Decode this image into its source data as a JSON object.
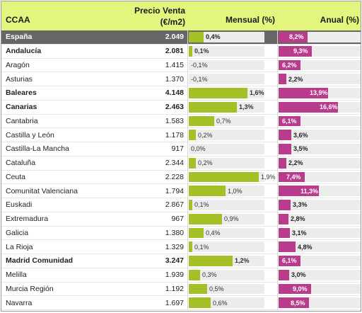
{
  "header": {
    "ccaa": "CCAA",
    "precio_line1": "Precio Venta",
    "precio_line2": "(€/m2)",
    "mensual": "Mensual (%)",
    "anual": "Anual (%)"
  },
  "colors": {
    "header_bg": "#e4f57e",
    "highlight_bg": "#676767",
    "mensual_bar": "#a3c127",
    "anual_bar": "#b83b8c"
  },
  "rows": [
    {
      "name": "España",
      "price": "2.049",
      "mensual": "0,4%",
      "mensual_value": 0.4,
      "anual": "8,2%",
      "anual_value": 8.2,
      "style": "highlight"
    },
    {
      "name": "Andalucía",
      "price": "2.081",
      "mensual": "0,1%",
      "mensual_value": 0.1,
      "anual": "9,3%",
      "anual_value": 9.3,
      "style": "bold"
    },
    {
      "name": "Aragón",
      "price": "1.415",
      "mensual": "-0,1%",
      "mensual_value": -0.1,
      "anual": "6,2%",
      "anual_value": 6.2,
      "style": "normal"
    },
    {
      "name": "Asturias",
      "price": "1.370",
      "mensual": "-0,1%",
      "mensual_value": -0.1,
      "anual": "2,2%",
      "anual_value": 2.2,
      "style": "normal"
    },
    {
      "name": "Baleares",
      "price": "4.148",
      "mensual": "1,6%",
      "mensual_value": 1.6,
      "anual": "13,9%",
      "anual_value": 13.9,
      "style": "bold"
    },
    {
      "name": "Canarias",
      "price": "2.463",
      "mensual": "1,3%",
      "mensual_value": 1.3,
      "anual": "16,6%",
      "anual_value": 16.6,
      "style": "bold"
    },
    {
      "name": "Cantabria",
      "price": "1.583",
      "mensual": "0,7%",
      "mensual_value": 0.7,
      "anual": "6,1%",
      "anual_value": 6.1,
      "style": "normal"
    },
    {
      "name": "Castilla y León",
      "price": "1.178",
      "mensual": "0,2%",
      "mensual_value": 0.2,
      "anual": "3,6%",
      "anual_value": 3.6,
      "style": "normal"
    },
    {
      "name": "Castilla-La Mancha",
      "price": "917",
      "mensual": "0,0%",
      "mensual_value": 0.0,
      "anual": "3,5%",
      "anual_value": 3.5,
      "style": "normal"
    },
    {
      "name": "Cataluña",
      "price": "2.344",
      "mensual": "0,2%",
      "mensual_value": 0.2,
      "anual": "2,2%",
      "anual_value": 2.2,
      "style": "normal"
    },
    {
      "name": "Ceuta",
      "price": "2.228",
      "mensual": "1,9%",
      "mensual_value": 1.9,
      "anual": "7,4%",
      "anual_value": 7.4,
      "style": "normal"
    },
    {
      "name": "Comunitat Valenciana",
      "price": "1.794",
      "mensual": "1,0%",
      "mensual_value": 1.0,
      "anual": "11,3%",
      "anual_value": 11.3,
      "style": "normal"
    },
    {
      "name": "Euskadi",
      "price": "2.867",
      "mensual": "0,1%",
      "mensual_value": 0.1,
      "anual": "3,3%",
      "anual_value": 3.3,
      "style": "normal"
    },
    {
      "name": "Extremadura",
      "price": "967",
      "mensual": "0,9%",
      "mensual_value": 0.9,
      "anual": "2,8%",
      "anual_value": 2.8,
      "style": "normal"
    },
    {
      "name": "Galicia",
      "price": "1.380",
      "mensual": "0,4%",
      "mensual_value": 0.4,
      "anual": "3,1%",
      "anual_value": 3.1,
      "style": "normal"
    },
    {
      "name": "La Rioja",
      "price": "1.329",
      "mensual": "0,1%",
      "mensual_value": 0.1,
      "anual": "4,8%",
      "anual_value": 4.8,
      "style": "normal"
    },
    {
      "name": "Madrid Comunidad",
      "price": "3.247",
      "mensual": "1,2%",
      "mensual_value": 1.2,
      "anual": "6,1%",
      "anual_value": 6.1,
      "style": "bold"
    },
    {
      "name": "Melilla",
      "price": "1.939",
      "mensual": "0,3%",
      "mensual_value": 0.3,
      "anual": "3,0%",
      "anual_value": 3.0,
      "style": "normal"
    },
    {
      "name": "Murcia Región",
      "price": "1.192",
      "mensual": "0,5%",
      "mensual_value": 0.5,
      "anual": "9,0%",
      "anual_value": 9.0,
      "style": "normal"
    },
    {
      "name": "Navarra",
      "price": "1.697",
      "mensual": "0,6%",
      "mensual_value": 0.6,
      "anual": "8,5%",
      "anual_value": 8.5,
      "style": "normal"
    }
  ]
}
